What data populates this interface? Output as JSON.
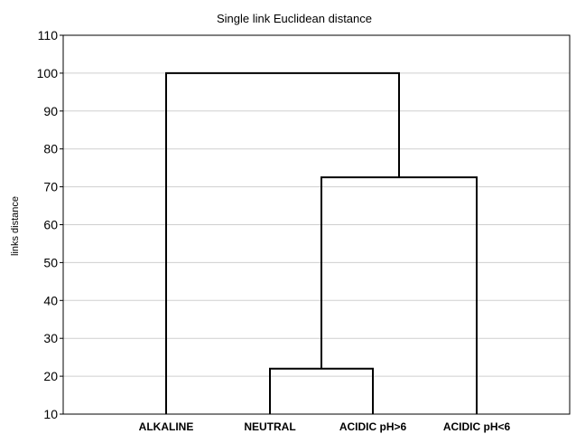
{
  "chart_data": {
    "type": "dendrogram",
    "title": "Single link Euclidean distance",
    "xlabel": "",
    "ylabel": "links distance",
    "ylim": [
      10,
      110
    ],
    "yticks": [
      10,
      20,
      30,
      40,
      50,
      60,
      70,
      80,
      90,
      100,
      110
    ],
    "grid": true,
    "leaves": [
      "ALKALINE",
      "NEUTRAL",
      "ACIDIC pH>6",
      "ACIDIC pH<6"
    ],
    "merges": [
      {
        "left": "NEUTRAL",
        "right": "ACIDIC pH>6",
        "height": 22
      },
      {
        "left": "cluster(NEUTRAL, ACIDIC pH>6)",
        "right": "ACIDIC pH<6",
        "height": 72.5
      },
      {
        "left": "ALKALINE",
        "right": "cluster(NEUTRAL, ACIDIC pH>6, ACIDIC pH<6)",
        "height": 100
      }
    ]
  }
}
